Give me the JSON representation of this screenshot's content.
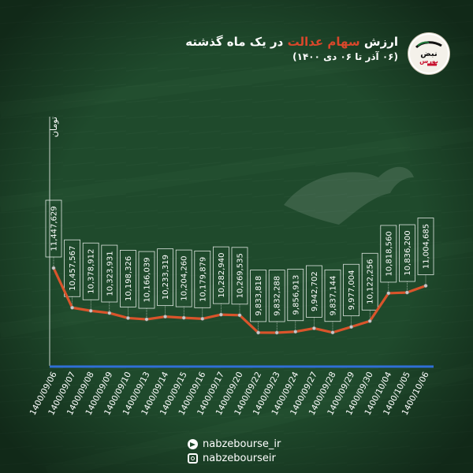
{
  "header": {
    "title_pre": "ارزش ",
    "title_highlight": "سهام عدالت",
    "title_post": " در یک ماه گذشته",
    "subtitle": "(۰۶ آذر تا ۰۶ دی ۱۴۰۰)"
  },
  "logo": {
    "text_top": "نبض",
    "text_bottom": "بورس"
  },
  "social": {
    "telegram": "nabzebourse_ir",
    "instagram": "nabzebourseir"
  },
  "colors": {
    "background": "#1f4a2c",
    "line": "#d9542b",
    "highlight": "#d9472b",
    "axis": "#2f6fd6"
  },
  "chart_data": {
    "type": "line",
    "ylabel": "تومان",
    "grid": false,
    "categories": [
      "1400/09/06",
      "1400/09/07",
      "1400/09/08",
      "1400/09/09",
      "1400/09/10",
      "1400/09/13",
      "1400/09/14",
      "1400/09/15",
      "1400/09/16",
      "1400/09/17",
      "1400/09/20",
      "1400/09/22",
      "1400/09/23",
      "1400/09/24",
      "1400/09/27",
      "1400/09/28",
      "1400/09/29",
      "1400/09/30",
      "1400/10/04",
      "1400/10/05",
      "1400/10/06"
    ],
    "values": [
      11447629,
      10457567,
      10378912,
      10323931,
      10198326,
      10166039,
      10233319,
      10204260,
      10179879,
      10282940,
      10269535,
      9833818,
      9832288,
      9856913,
      9942702,
      9837144,
      9977004,
      10122256,
      10818560,
      10836200,
      11004685
    ],
    "labels": [
      "11,447,629",
      "10,457,567",
      "10,378,912",
      "10,323,931",
      "10,198,326",
      "10,166,039",
      "10,233,319",
      "10,204,260",
      "10,179,879",
      "10,282,940",
      "10,269,535",
      "9,833,818",
      "9,832,288",
      "9,856,913",
      "9,942,702",
      "9,837,144",
      "9,977,004",
      "10,122,256",
      "10,818,560",
      "10,836,200",
      "11,004,685"
    ]
  }
}
